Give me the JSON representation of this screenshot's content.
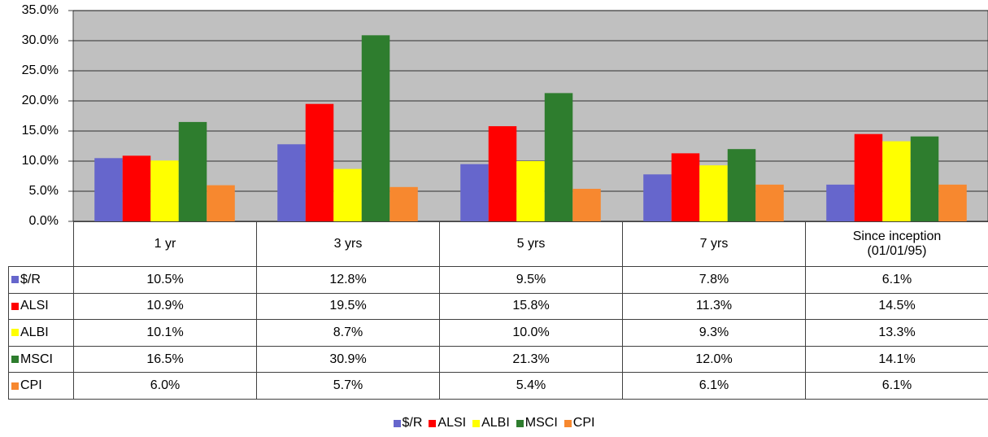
{
  "chart_data": {
    "type": "bar",
    "categories": [
      "1 yr",
      "3 yrs",
      "5 yrs",
      "7 yrs",
      "Since inception\n(01/01/95)"
    ],
    "series": [
      {
        "name": "$/R",
        "color": "#6666cc",
        "values": [
          10.5,
          12.8,
          9.5,
          7.8,
          6.1
        ],
        "value_labels": [
          "10.5%",
          "12.8%",
          "9.5%",
          "7.8%",
          "6.1%"
        ]
      },
      {
        "name": "ALSI",
        "color": "#ff0000",
        "values": [
          10.9,
          19.5,
          15.8,
          11.3,
          14.5
        ],
        "value_labels": [
          "10.9%",
          "19.5%",
          "15.8%",
          "11.3%",
          "14.5%"
        ]
      },
      {
        "name": "ALBI",
        "color": "#ffff00",
        "values": [
          10.1,
          8.7,
          10.0,
          9.3,
          13.3
        ],
        "value_labels": [
          "10.1%",
          "8.7%",
          "10.0%",
          "9.3%",
          "13.3%"
        ]
      },
      {
        "name": "MSCI",
        "color": "#2e7d2e",
        "values": [
          16.5,
          30.9,
          21.3,
          12.0,
          14.1
        ],
        "value_labels": [
          "16.5%",
          "30.9%",
          "21.3%",
          "12.0%",
          "14.1%"
        ]
      },
      {
        "name": "CPI",
        "color": "#f7882f",
        "values": [
          6.0,
          5.7,
          5.4,
          6.1,
          6.1
        ],
        "value_labels": [
          "6.0%",
          "5.7%",
          "5.4%",
          "6.1%",
          "6.1%"
        ]
      }
    ],
    "ylim": [
      0,
      35
    ],
    "yticks": [
      {
        "value": 0,
        "label": "0.0%"
      },
      {
        "value": 5,
        "label": "5.0%"
      },
      {
        "value": 10,
        "label": "10.0%"
      },
      {
        "value": 15,
        "label": "15.0%"
      },
      {
        "value": 20,
        "label": "20.0%"
      },
      {
        "value": 25,
        "label": "25.0%"
      },
      {
        "value": 30,
        "label": "30.0%"
      },
      {
        "value": 35,
        "label": "35.0%"
      }
    ],
    "grid": true,
    "legend": "bottom"
  }
}
